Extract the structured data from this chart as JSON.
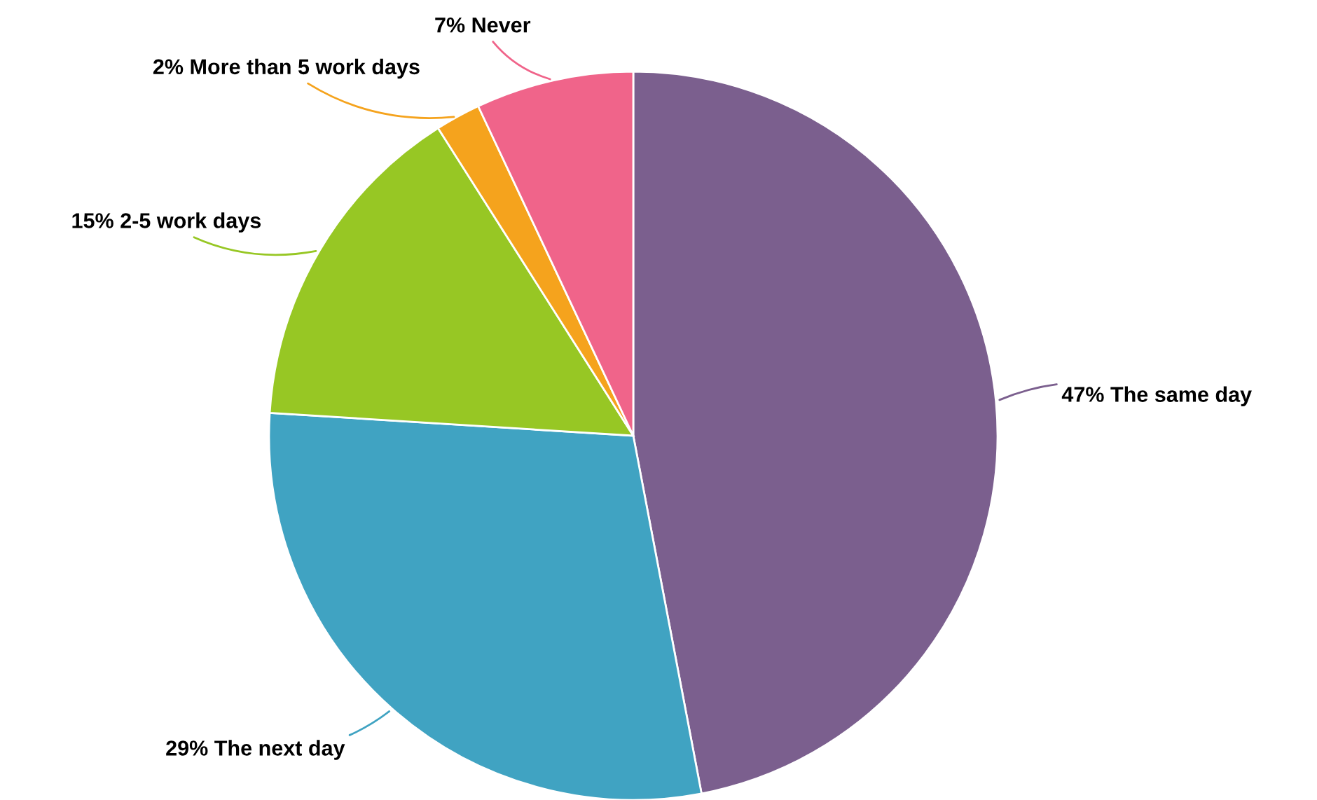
{
  "chart_data": {
    "type": "pie",
    "categories": [
      "The same day",
      "The next day",
      "2-5 work days",
      "More than 5 work days",
      "Never"
    ],
    "values": [
      47,
      29,
      15,
      2,
      7
    ],
    "value_labels": [
      "47%",
      "29%",
      "15%",
      "2%",
      "7%"
    ],
    "colors": [
      "#7b5f8e",
      "#40a3c2",
      "#97c724",
      "#f5a31d",
      "#f0648a"
    ]
  }
}
